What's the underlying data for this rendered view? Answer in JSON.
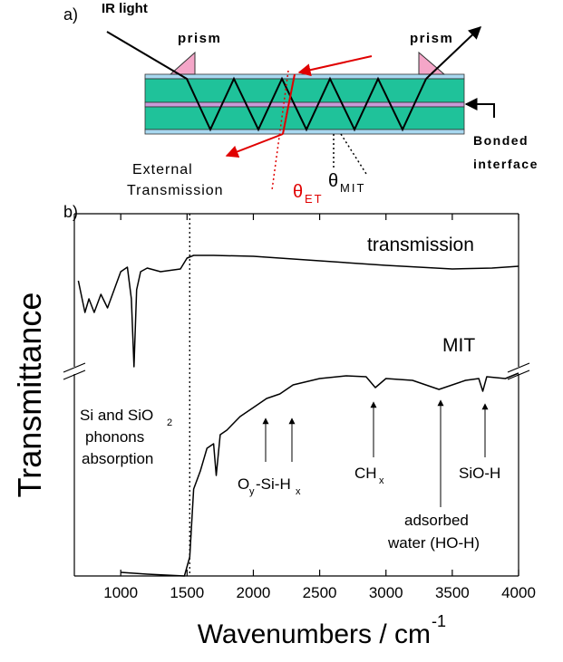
{
  "diagram": {
    "panel_label": "a)",
    "ir_light": "IR light",
    "prism_left": "prism",
    "prism_right": "prism",
    "bonded_1": "Bonded",
    "bonded_2": "interface",
    "external_1": "External",
    "external_2": "Transmission",
    "theta_et": "θ",
    "theta_et_sub": "ET",
    "theta_mit": "θ",
    "theta_mit_sub": "MIT"
  },
  "chart_data": {
    "type": "line",
    "panel_label": "b)",
    "x_label": "Wavenumbers / cm",
    "x_label_sup": "-1",
    "y_label": "Transmittance",
    "xlim": [
      650,
      4000
    ],
    "ylim": [
      0,
      100
    ],
    "xticks": [
      1000,
      1500,
      2000,
      2500,
      3000,
      3500,
      4000
    ],
    "axis_break": true,
    "vline": 1520,
    "series": [
      {
        "name": "transmission",
        "color": "#000000",
        "x": [
          680,
          730,
          760,
          800,
          850,
          900,
          950,
          1000,
          1050,
          1080,
          1100,
          1120,
          1150,
          1200,
          1300,
          1400,
          1450,
          1500,
          1550,
          1700,
          2000,
          2500,
          3000,
          3500,
          3800,
          4000
        ],
        "values": [
          81.5,
          72.75,
          76.5,
          72.75,
          77.75,
          74,
          79,
          84,
          85.25,
          76.5,
          57.75,
          79,
          84,
          85,
          84,
          84.5,
          84.75,
          87.75,
          88.5,
          88.5,
          88.25,
          87,
          85.75,
          84.75,
          85,
          85.5
        ]
      },
      {
        "name": "MIT",
        "color": "#000000",
        "x": [
          1000,
          1200,
          1480,
          1520,
          1550,
          1600,
          1650,
          1700,
          1720,
          1750,
          1800,
          1900,
          2000,
          2100,
          2200,
          2300,
          2500,
          2700,
          2850,
          2920,
          3000,
          3200,
          3400,
          3600,
          3700,
          3730,
          3760,
          3900,
          4000
        ],
        "values": [
          1,
          0.5,
          0,
          5.25,
          24,
          29,
          35.25,
          36.5,
          27.75,
          39,
          40.25,
          44,
          46.5,
          49,
          50.25,
          52.75,
          54.5,
          55.25,
          55,
          52,
          54.5,
          54,
          51.5,
          54,
          54.5,
          51,
          55,
          54.5,
          56
        ]
      }
    ],
    "annotations": {
      "phonon_1": "Si and SiO",
      "phonon_1_sub": "2",
      "phonon_2": "phonons",
      "phonon_3": "absorption",
      "osih_o": "O",
      "osih_y": "y",
      "osih_mid": "-Si-H",
      "osih_x": "x",
      "chx": "CH",
      "chx_sub": "x",
      "sioh": "SiO-H",
      "water_1": "adsorbed",
      "water_2": "water (HO-H)"
    }
  }
}
